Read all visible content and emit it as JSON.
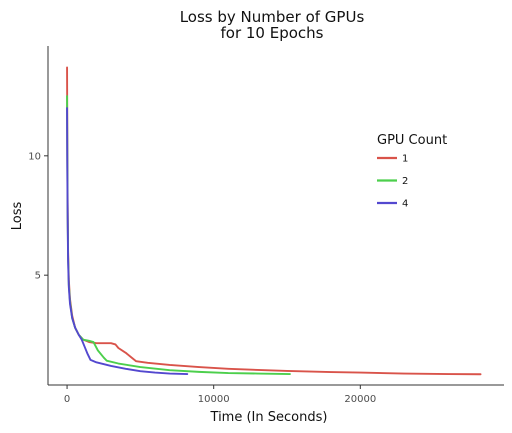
{
  "chart_data": {
    "type": "line",
    "title": "Loss by Number of GPUs\nfor 10 Epochs",
    "xlabel": "Time (In Seconds)",
    "ylabel": "Loss",
    "xlim": [
      -1300,
      29800
    ],
    "ylim": [
      0.4,
      14.6
    ],
    "x_ticks": [
      0,
      10000,
      20000
    ],
    "x_tick_labels": [
      "0",
      "10000",
      "20000"
    ],
    "y_ticks": [
      5,
      10
    ],
    "y_tick_labels": [
      "5",
      "10"
    ],
    "grid": false,
    "legend": {
      "title": "GPU Count",
      "position": "right"
    },
    "series": [
      {
        "name": "1",
        "color": "#d9534a",
        "points": [
          [
            0,
            13.7
          ],
          [
            5,
            12.8
          ],
          [
            20,
            10.0
          ],
          [
            40,
            8.0
          ],
          [
            70,
            6.0
          ],
          [
            120,
            4.8
          ],
          [
            200,
            4.0
          ],
          [
            350,
            3.3
          ],
          [
            550,
            2.8
          ],
          [
            800,
            2.5
          ],
          [
            1100,
            2.3
          ],
          [
            1500,
            2.2
          ],
          [
            2000,
            2.15
          ],
          [
            2500,
            2.15
          ],
          [
            3000,
            2.15
          ],
          [
            3300,
            2.1
          ],
          [
            3500,
            1.95
          ],
          [
            4000,
            1.75
          ],
          [
            4300,
            1.6
          ],
          [
            4700,
            1.4
          ],
          [
            5500,
            1.33
          ],
          [
            7000,
            1.24
          ],
          [
            9000,
            1.15
          ],
          [
            11000,
            1.08
          ],
          [
            13000,
            1.03
          ],
          [
            15000,
            0.99
          ],
          [
            18000,
            0.94
          ],
          [
            20000,
            0.92
          ],
          [
            23000,
            0.88
          ],
          [
            26000,
            0.86
          ],
          [
            28200,
            0.85
          ]
        ]
      },
      {
        "name": "2",
        "color": "#4ccf4c",
        "points": [
          [
            0,
            12.5
          ],
          [
            5,
            11.6
          ],
          [
            20,
            9.5
          ],
          [
            40,
            7.6
          ],
          [
            70,
            5.8
          ],
          [
            120,
            4.6
          ],
          [
            200,
            3.9
          ],
          [
            350,
            3.2
          ],
          [
            550,
            2.8
          ],
          [
            800,
            2.5
          ],
          [
            1100,
            2.3
          ],
          [
            1500,
            2.25
          ],
          [
            1800,
            2.2
          ],
          [
            2100,
            1.85
          ],
          [
            2500,
            1.55
          ],
          [
            2700,
            1.42
          ],
          [
            3500,
            1.3
          ],
          [
            5000,
            1.15
          ],
          [
            7000,
            1.02
          ],
          [
            9000,
            0.95
          ],
          [
            11000,
            0.9
          ],
          [
            13000,
            0.88
          ],
          [
            15200,
            0.86
          ]
        ]
      },
      {
        "name": "4",
        "color": "#5348cf",
        "points": [
          [
            0,
            12.0
          ],
          [
            5,
            11.2
          ],
          [
            20,
            9.2
          ],
          [
            40,
            7.4
          ],
          [
            70,
            5.6
          ],
          [
            120,
            4.5
          ],
          [
            200,
            3.8
          ],
          [
            350,
            3.2
          ],
          [
            550,
            2.8
          ],
          [
            800,
            2.5
          ],
          [
            1000,
            2.3
          ],
          [
            1200,
            2.0
          ],
          [
            1400,
            1.7
          ],
          [
            1600,
            1.45
          ],
          [
            2000,
            1.35
          ],
          [
            3000,
            1.2
          ],
          [
            4000,
            1.08
          ],
          [
            5000,
            0.98
          ],
          [
            6000,
            0.92
          ],
          [
            7000,
            0.88
          ],
          [
            8200,
            0.86
          ]
        ]
      }
    ]
  }
}
